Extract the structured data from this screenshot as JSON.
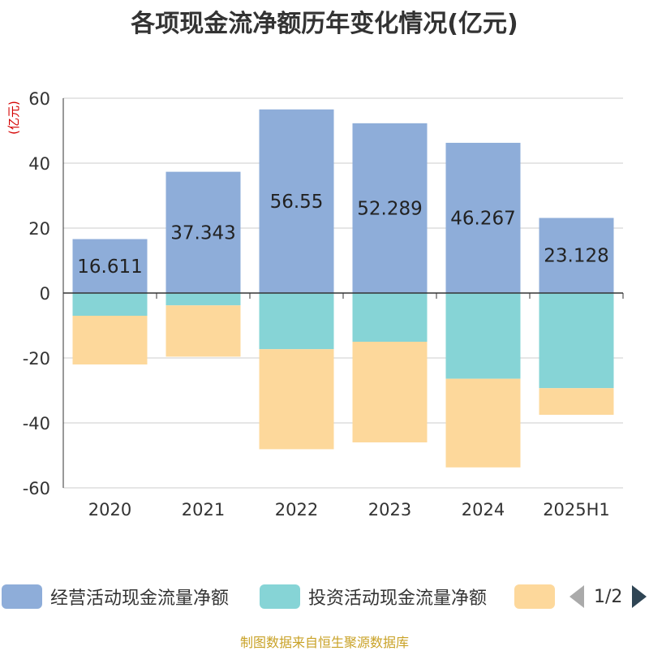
{
  "title": "各项现金流净额历年变化情况(亿元)",
  "chart_data": {
    "type": "bar",
    "stacked": true,
    "categories": [
      "2020",
      "2021",
      "2022",
      "2023",
      "2024",
      "2025H1"
    ],
    "unit_label": "(亿元)",
    "ylim": [
      -60,
      60
    ],
    "y_ticks": [
      60,
      40,
      20,
      0,
      -20,
      -40,
      -60
    ],
    "grid": true,
    "series": [
      {
        "name": "经营活动现金流量净额",
        "color": "#8eadd9",
        "values": [
          16.611,
          37.343,
          56.55,
          52.289,
          46.267,
          23.128
        ],
        "labels": [
          "16.611",
          "37.343",
          "56.55",
          "52.289",
          "46.267",
          "23.128"
        ]
      },
      {
        "name": "投资活动现金流量净额",
        "color": "#86d4d6",
        "values": [
          -7.0,
          -3.8,
          -17.3,
          -15.0,
          -26.4,
          -29.3
        ]
      },
      {
        "name": "",
        "color": "#fdd89b",
        "values": [
          -15.0,
          -15.8,
          -30.8,
          -31.0,
          -27.3,
          -8.2
        ]
      }
    ]
  },
  "legend": {
    "items": [
      {
        "label": "经营活动现金流量净额",
        "color": "#8eadd9"
      },
      {
        "label": "投资活动现金流量净额",
        "color": "#86d4d6"
      },
      {
        "label": "",
        "color": "#fdd89b"
      }
    ],
    "page_text": "1/2"
  },
  "source": "制图数据来自恒生聚源数据库"
}
